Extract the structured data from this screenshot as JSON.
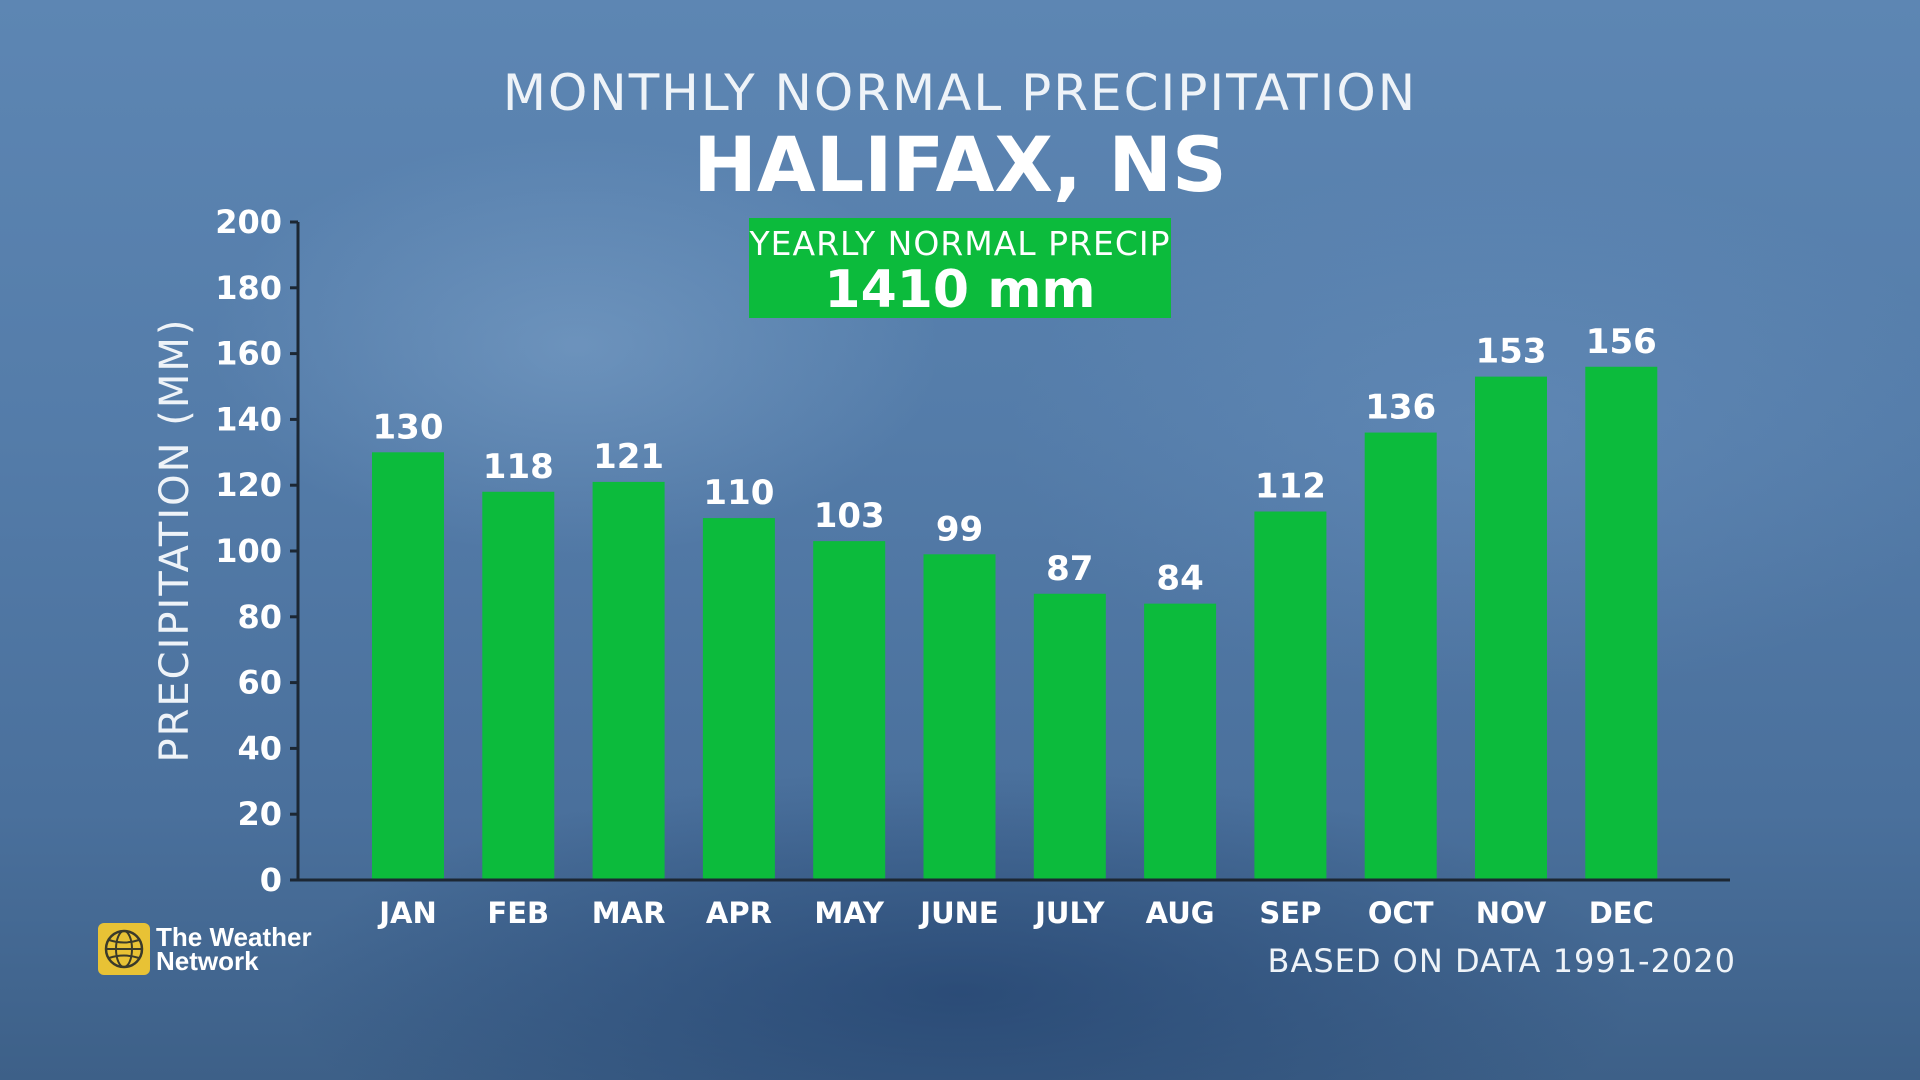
{
  "header": {
    "subtitle": "MONTHLY NORMAL PRECIPITATION",
    "title": "HALIFAX, NS"
  },
  "yearly": {
    "label": "YEARLY NORMAL PRECIP",
    "value": "1410 mm"
  },
  "footnote": "BASED ON DATA 1991-2020",
  "logo": {
    "line1": "The Weather",
    "line2": "Network",
    "icon": "globe-icon"
  },
  "colors": {
    "bar": "#0cbb3c",
    "axis": "#1c2733",
    "text": "#ffffff"
  },
  "chart_data": {
    "type": "bar",
    "title": "MONTHLY NORMAL PRECIPITATION",
    "subtitle": "HALIFAX, NS",
    "xlabel": "",
    "ylabel": "PRECIPITATION (MM)",
    "categories": [
      "JAN",
      "FEB",
      "MAR",
      "APR",
      "MAY",
      "JUNE",
      "JULY",
      "AUG",
      "SEP",
      "OCT",
      "NOV",
      "DEC"
    ],
    "values": [
      130,
      118,
      121,
      110,
      103,
      99,
      87,
      84,
      112,
      136,
      153,
      156
    ],
    "yticks": [
      0,
      20,
      40,
      60,
      80,
      100,
      120,
      140,
      160,
      180,
      200
    ],
    "ylim": [
      0,
      200
    ],
    "grid": false,
    "data_labels": true
  }
}
